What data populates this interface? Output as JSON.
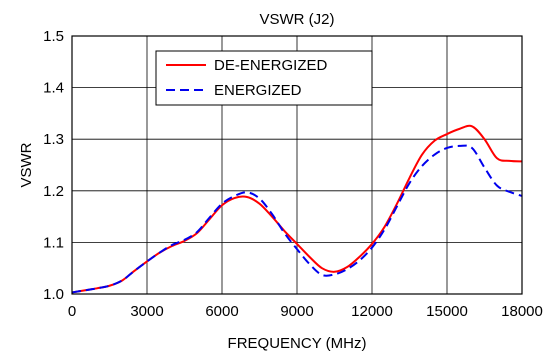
{
  "chart_data": {
    "type": "line",
    "title": "VSWR (J2)",
    "xlabel": "FREQUENCY (MHz)",
    "ylabel": "VSWR",
    "xlim": [
      0,
      18000
    ],
    "ylim": [
      1.0,
      1.5
    ],
    "xticks": [
      0,
      3000,
      6000,
      9000,
      12000,
      15000,
      18000
    ],
    "yticks": [
      1.0,
      1.1,
      1.2,
      1.3,
      1.4,
      1.5
    ],
    "xtick_labels": [
      "0",
      "3000",
      "6000",
      "9000",
      "12000",
      "15000",
      "18000"
    ],
    "ytick_labels": [
      "1.0",
      "1.1",
      "1.2",
      "1.3",
      "1.4",
      "1.5"
    ],
    "grid": true,
    "legend_position": "top-center",
    "series": [
      {
        "name": "DE-ENERGIZED",
        "color": "#ff0000",
        "style": "solid",
        "x": [
          0,
          500,
          1000,
          1500,
          2000,
          2500,
          3000,
          3500,
          4000,
          4500,
          5000,
          5500,
          6000,
          6500,
          7000,
          7500,
          8000,
          8500,
          9000,
          9500,
          10000,
          10500,
          11000,
          11500,
          12000,
          12500,
          13000,
          13500,
          14000,
          14500,
          15000,
          15500,
          16000,
          16500,
          17000,
          17500,
          18000
        ],
        "y": [
          1.003,
          1.007,
          1.011,
          1.016,
          1.026,
          1.045,
          1.063,
          1.08,
          1.093,
          1.103,
          1.118,
          1.145,
          1.172,
          1.186,
          1.188,
          1.175,
          1.15,
          1.122,
          1.097,
          1.072,
          1.05,
          1.043,
          1.052,
          1.072,
          1.097,
          1.13,
          1.175,
          1.225,
          1.27,
          1.297,
          1.31,
          1.32,
          1.325,
          1.3,
          1.263,
          1.258,
          1.257
        ]
      },
      {
        "name": "ENERGIZED",
        "color": "#0000ee",
        "style": "dashed",
        "x": [
          0,
          500,
          1000,
          1500,
          2000,
          2500,
          3000,
          3500,
          4000,
          4500,
          5000,
          5500,
          6000,
          6500,
          7000,
          7500,
          8000,
          8500,
          9000,
          9500,
          10000,
          10500,
          11000,
          11500,
          12000,
          12500,
          13000,
          13500,
          14000,
          14500,
          15000,
          15500,
          16000,
          16500,
          17000,
          17500,
          18000
        ],
        "y": [
          1.003,
          1.007,
          1.011,
          1.016,
          1.026,
          1.045,
          1.063,
          1.08,
          1.095,
          1.105,
          1.12,
          1.148,
          1.175,
          1.19,
          1.197,
          1.185,
          1.155,
          1.118,
          1.087,
          1.058,
          1.037,
          1.038,
          1.048,
          1.065,
          1.09,
          1.125,
          1.17,
          1.215,
          1.248,
          1.27,
          1.283,
          1.287,
          1.283,
          1.245,
          1.21,
          1.198,
          1.19
        ]
      }
    ]
  }
}
